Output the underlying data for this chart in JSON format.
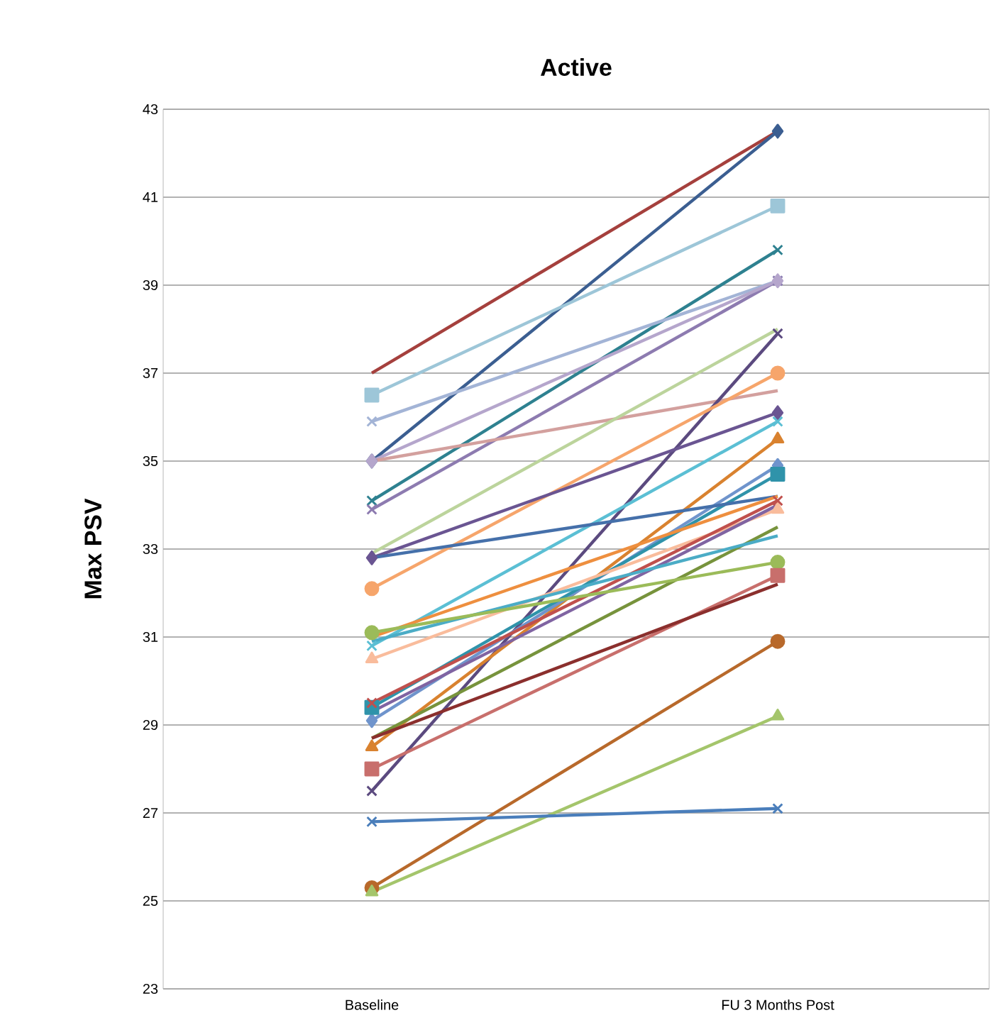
{
  "chart_data": {
    "type": "line",
    "title": "Active",
    "ylabel": "Max PSV",
    "categories": [
      "Baseline",
      "FU 3 Months Post"
    ],
    "ylim": [
      23,
      43
    ],
    "yticks": [
      23,
      25,
      27,
      29,
      31,
      33,
      35,
      37,
      39,
      41,
      43
    ],
    "grid": "y",
    "series": [
      {
        "color": "#a5403d",
        "values": [
          37.0,
          42.5
        ],
        "marker": "none"
      },
      {
        "color": "#3b5e91",
        "values": [
          35.0,
          42.5
        ],
        "marker": "diamond"
      },
      {
        "color": "#9dc6d8",
        "values": [
          36.5,
          40.8
        ],
        "marker": "square"
      },
      {
        "color": "#2e8190",
        "values": [
          34.1,
          39.8
        ],
        "marker": "cross"
      },
      {
        "color": "#a3b4d6",
        "values": [
          35.9,
          39.1
        ],
        "marker": "cross"
      },
      {
        "color": "#8d7bb0",
        "values": [
          33.9,
          39.1
        ],
        "marker": "cross"
      },
      {
        "color": "#b5a6cc",
        "values": [
          35.0,
          39.1
        ],
        "marker": "diamond"
      },
      {
        "color": "#d3a09e",
        "values": [
          35.0,
          36.6
        ],
        "marker": "none"
      },
      {
        "color": "#bcd49c",
        "values": [
          32.9,
          38.0
        ],
        "marker": "none"
      },
      {
        "color": "#5b4a7f",
        "values": [
          27.5,
          37.9
        ],
        "marker": "cross"
      },
      {
        "color": "#f6a56b",
        "values": [
          32.1,
          37.0
        ],
        "marker": "circle"
      },
      {
        "color": "#6a5592",
        "values": [
          32.8,
          36.1
        ],
        "marker": "diamond"
      },
      {
        "color": "#5bbfd4",
        "values": [
          30.8,
          35.9
        ],
        "marker": "cross"
      },
      {
        "color": "#d9822f",
        "values": [
          28.5,
          35.5
        ],
        "marker": "triangle"
      },
      {
        "color": "#6f94cc",
        "values": [
          29.1,
          34.9
        ],
        "marker": "diamond"
      },
      {
        "color": "#2f93aa",
        "values": [
          29.4,
          34.7
        ],
        "marker": "square"
      },
      {
        "color": "#4570aa",
        "values": [
          32.8,
          34.2
        ],
        "marker": "none"
      },
      {
        "color": "#ee8f3f",
        "values": [
          31.0,
          34.2
        ],
        "marker": "none"
      },
      {
        "color": "#f9bc9c",
        "values": [
          30.5,
          33.9
        ],
        "marker": "triangle"
      },
      {
        "color": "#c0504d",
        "values": [
          29.5,
          34.1
        ],
        "marker": "cross"
      },
      {
        "color": "#8064a2",
        "values": [
          29.3,
          34.0
        ],
        "marker": "none"
      },
      {
        "color": "#77933c",
        "values": [
          28.7,
          33.5
        ],
        "marker": "none"
      },
      {
        "color": "#4bacc6",
        "values": [
          30.9,
          33.3
        ],
        "marker": "none"
      },
      {
        "color": "#9bbb59",
        "values": [
          31.1,
          32.7
        ],
        "marker": "circle"
      },
      {
        "color": "#c86f6c",
        "values": [
          28.0,
          32.4
        ],
        "marker": "square"
      },
      {
        "color": "#8b2f2d",
        "values": [
          28.7,
          32.2
        ],
        "marker": "none"
      },
      {
        "color": "#b8692b",
        "values": [
          25.3,
          30.9
        ],
        "marker": "circle"
      },
      {
        "color": "#a4c56b",
        "values": [
          25.2,
          29.2
        ],
        "marker": "triangle"
      },
      {
        "color": "#4a7ebb",
        "values": [
          26.8,
          27.1
        ],
        "marker": "cross"
      }
    ]
  }
}
